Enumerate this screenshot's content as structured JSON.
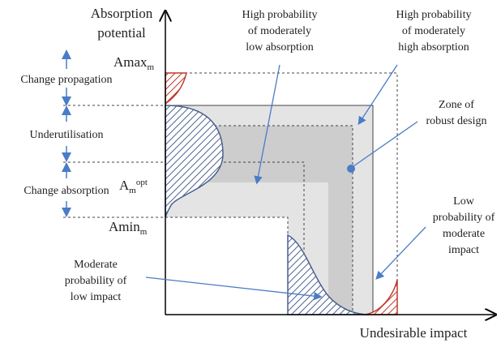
{
  "axes": {
    "y_label": [
      "Absorption",
      "potential"
    ],
    "x_label": "Undesirable impact"
  },
  "levels": {
    "amax": {
      "main": "Amax",
      "sub": "m"
    },
    "aopt": {
      "main": "A",
      "sub": "m",
      "sup": "opt"
    },
    "amin": {
      "main": "Amin",
      "sub": "m"
    }
  },
  "bands": [
    "Change propagation",
    "Underutilisation",
    "Change absorption"
  ],
  "callouts": {
    "moderately_low": [
      "High probability",
      "of moderately",
      "low absorption"
    ],
    "moderately_high": [
      "High probability",
      "of moderately",
      "high absorption"
    ],
    "robust": [
      "Zone of",
      "robust design"
    ],
    "low_prob": [
      "Low",
      "probability of",
      "moderate",
      "impact"
    ],
    "moderate_prob": [
      "Moderate",
      "probability of",
      "low impact"
    ]
  }
}
